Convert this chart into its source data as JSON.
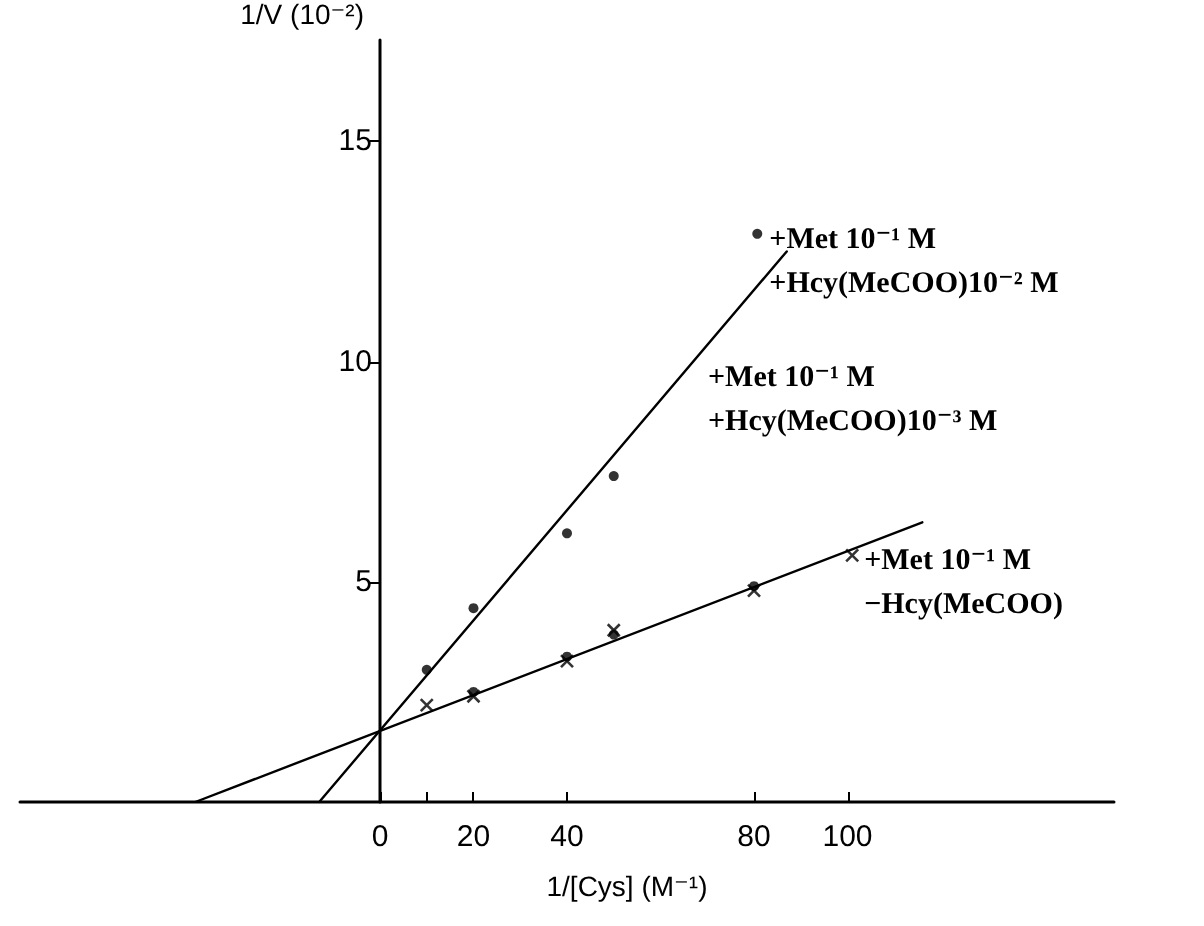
{
  "chart_data": {
    "type": "scatter",
    "xlabel": "1/[Cys] (M⁻¹)",
    "ylabel": "1/V (10⁻²)",
    "xlim": [
      -77,
      157
    ],
    "ylim": [
      0,
      17.3
    ],
    "xticks": [
      0,
      {
        "value": 10,
        "label": null
      },
      20,
      40,
      80,
      100
    ],
    "yticks": [
      5,
      10,
      15
    ],
    "grid": false,
    "series": [
      {
        "color": "#000000",
        "marker": "circle",
        "x": [
          10,
          20,
          40,
          50,
          80.7
        ],
        "values": [
          3.0,
          4.4,
          6.1,
          7.4,
          12.9
        ]
      },
      {
        "color": "#000000",
        "marker": "circle",
        "x": [
          20,
          40,
          50,
          80
        ],
        "values": [
          2.5,
          3.3,
          3.8,
          4.9
        ]
      },
      {
        "color": "#000000",
        "marker": "cross",
        "x": [
          10,
          20,
          40,
          50,
          80,
          101
        ],
        "values": [
          2.2,
          2.4,
          3.2,
          3.9,
          4.8,
          5.6
        ]
      },
      {
        "type": "line",
        "color": "#000000",
        "marker": "none",
        "x": [
          -13,
          87
        ],
        "values": [
          0,
          12.5
        ]
      },
      {
        "type": "line",
        "color": "#000000",
        "marker": "none",
        "x": [
          -39.5,
          116
        ],
        "values": [
          0,
          6.35
        ]
      }
    ],
    "annotations": [
      {
        "text": "+Met 10⁻¹ M\n+Hcy(MeCOO)10⁻² M",
        "x": 80.7,
        "y": 12.9
      },
      "+Met 10⁻¹ M\n+Hcy(MeCOO)10⁻³ M",
      {
        "text": "+Met 10⁻¹ M\n−Hcy(MeCOO)",
        "x": 101,
        "y": 5.6
      }
    ]
  }
}
